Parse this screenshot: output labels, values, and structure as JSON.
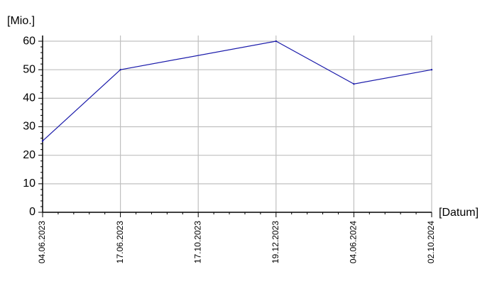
{
  "chart_data": {
    "type": "line",
    "title": "",
    "ylabel": "[Mio.]",
    "xlabel": "[Datum]",
    "categories": [
      "04.06.2023",
      "17.06.2023",
      "17.10.2023",
      "19.12.2023",
      "04.06.2024",
      "02.10.2024"
    ],
    "y_ticks": [
      "0",
      "10",
      "20",
      "30",
      "40",
      "50",
      "60"
    ],
    "ylim": [
      0,
      62
    ],
    "grid": true,
    "legend": "none",
    "series": [
      {
        "color": "#1a1aaa",
        "points": [
          {
            "x": "04.06.2023",
            "y": 25
          },
          {
            "x": "17.06.2023",
            "y": 50
          },
          {
            "x": "19.12.2023",
            "y": 60
          },
          {
            "x": "04.06.2024",
            "y": 45
          },
          {
            "x": "02.10.2024",
            "y": 50
          }
        ]
      }
    ]
  }
}
